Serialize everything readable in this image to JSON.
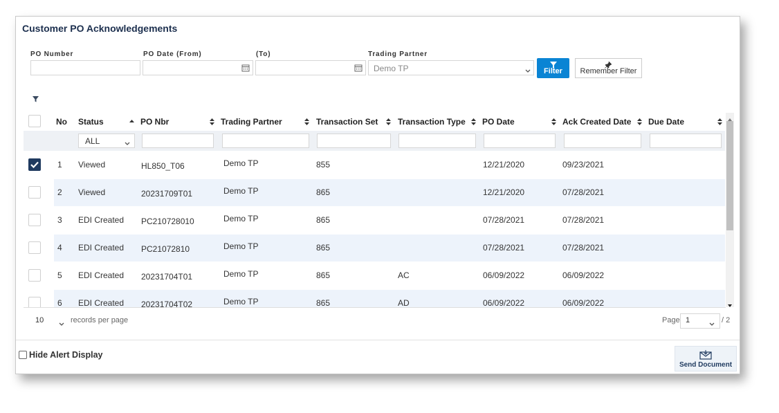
{
  "title": "Customer PO Acknowledgements",
  "filters": {
    "po_number_label": "PO Number",
    "po_date_from_label": "PO Date (From)",
    "to_label": "(To)",
    "trading_partner_label": "Trading Partner",
    "trading_partner_value": "Demo TP",
    "filter_button": "Filter",
    "remember_button": "Remember Filter"
  },
  "table": {
    "columns": [
      "No",
      "Status",
      "PO Nbr",
      "Trading Partner",
      "Transaction Set",
      "Transaction Type",
      "PO Date",
      "Ack Created Date",
      "Due Date"
    ],
    "sort": {
      "column": 1,
      "direction": "asc"
    },
    "status_filter": "ALL",
    "rows": [
      {
        "checked": true,
        "no": "1",
        "status": "Viewed",
        "po_nbr": "HL850_T06",
        "trading_partner": "Demo TP",
        "transaction_set": "855",
        "po_date": "12/21/2020",
        "ack_created_date": "09/23/2021"
      },
      {
        "checked": false,
        "no": "2",
        "status": "Viewed",
        "po_nbr": "20231709T01",
        "trading_partner": "Demo TP",
        "transaction_set": "865",
        "po_date": "12/21/2020",
        "ack_created_date": "07/28/2021"
      },
      {
        "checked": false,
        "no": "3",
        "status": "EDI Created",
        "po_nbr": "PC210728010",
        "trading_partner": "Demo TP",
        "transaction_set": "865",
        "po_date": "07/28/2021",
        "ack_created_date": "07/28/2021"
      },
      {
        "checked": false,
        "no": "4",
        "status": "EDI Created",
        "po_nbr": "PC21072810",
        "trading_partner": "Demo TP",
        "transaction_set": "865",
        "po_date": "07/28/2021",
        "ack_created_date": "07/28/2021"
      },
      {
        "checked": false,
        "no": "5",
        "status": "EDI Created",
        "po_nbr": "20231704T01",
        "trading_partner": "Demo TP",
        "transaction_set": "865",
        "transaction_type": "AC",
        "po_date": "06/09/2022",
        "ack_created_date": "06/09/2022"
      },
      {
        "checked": false,
        "no": "6",
        "status": "EDI Created",
        "po_nbr": "20231704T02",
        "trading_partner": "Demo TP",
        "transaction_set": "865",
        "transaction_type": "AD",
        "po_date": "06/09/2022",
        "ack_created_date": "06/09/2022"
      }
    ]
  },
  "pagination": {
    "page_size": "10",
    "page_size_label": "records per page",
    "page_label": "Page",
    "page": "1",
    "total": "/ 2"
  },
  "footer": {
    "hide_alert": "Hide Alert Display",
    "send_document": "Send Document"
  }
}
